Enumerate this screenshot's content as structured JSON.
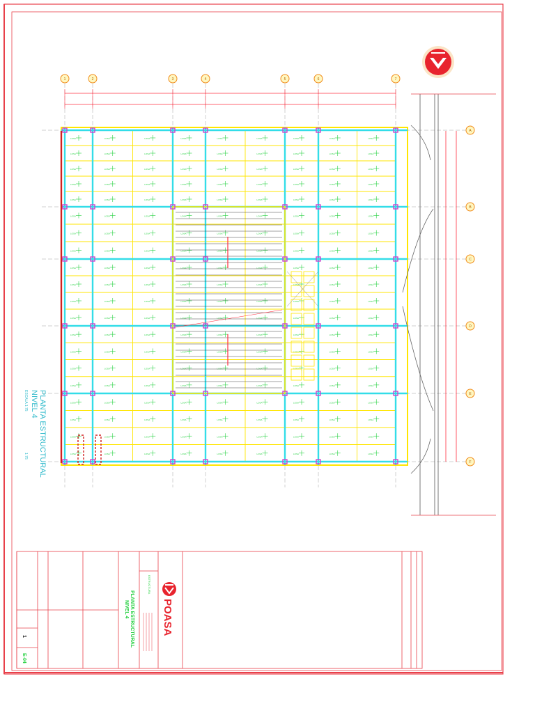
{
  "colors": {
    "border": "#e8404a",
    "beam": "#ffe600",
    "column_line": "#33dde8",
    "column": "#cc44cc",
    "grid_bubble": "#f08a1a",
    "dimension": "#ff3040",
    "text_green": "#25d040",
    "wall": "#444444",
    "logo_red": "#e8242e"
  },
  "plan": {
    "title": "PLANTA ESTRUCTURAL",
    "subtitle": "NIVEL 4",
    "scale_text": "ESCALA 1:75",
    "scale_note": "1:75",
    "grid_x_labels": [
      "1",
      "2",
      "3",
      "4",
      "5",
      "6",
      "7"
    ],
    "grid_y_labels": [
      "A",
      "B",
      "C",
      "D",
      "E",
      "F"
    ],
    "panel_tag": "LOSA"
  },
  "title_block": {
    "company": "POASA",
    "drawing_title": "PLANTA ESTRUCTURAL",
    "drawing_subtitle": "NIVEL 4",
    "sheet_number": "E-04",
    "sheet_index": "1",
    "discipline": "ESTRUCTURA"
  },
  "icons": {
    "logo": "poasa-logo-icon",
    "north": "north-arrow-icon"
  }
}
